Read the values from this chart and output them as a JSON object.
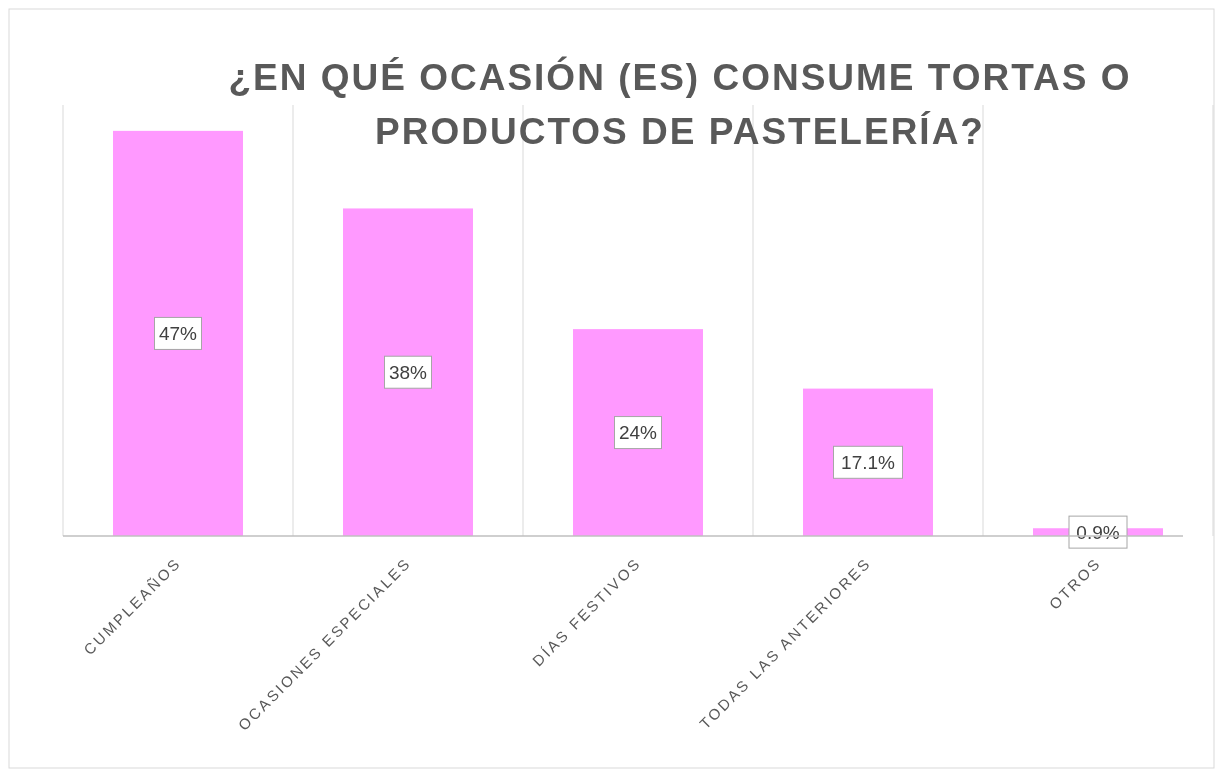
{
  "chart_data": {
    "type": "bar",
    "title": "¿EN QUÉ OCASIÓN (ES) CONSUME TORTAS O PRODUCTOS DE PASTELERÍA?",
    "categories": [
      "CUMPLEAÑOS",
      "OCASIONES ESPECIALES",
      "DÍAS FESTIVOS",
      "TODAS LAS ANTERIORES",
      "OTROS"
    ],
    "values": [
      47,
      38,
      24,
      17.1,
      0.9
    ],
    "value_labels": [
      "47%",
      "38%",
      "24%",
      "17.1%",
      "0.9%"
    ],
    "color": "#ff99ff",
    "ylim": [
      0,
      50
    ],
    "tick_labels": "x",
    "grid": "x"
  }
}
